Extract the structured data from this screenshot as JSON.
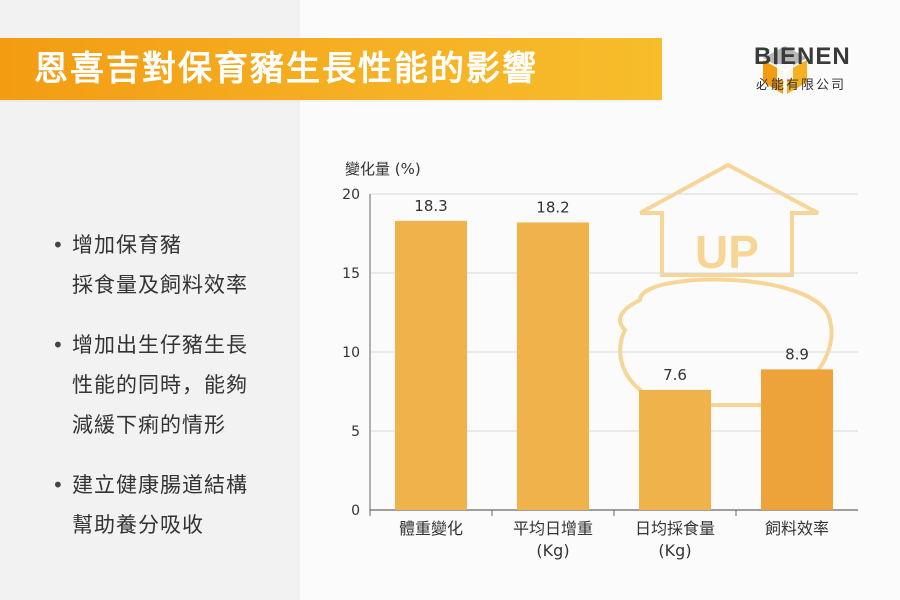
{
  "header": {
    "title": "恩喜吉對保育豬生長性能的影響"
  },
  "logo": {
    "name": "BIENEN",
    "subtitle": "必能有限公司",
    "icon": "cube-logo-icon"
  },
  "bullets": [
    {
      "text": "增加保育豬\n採食量及飼料效率"
    },
    {
      "text": "增加出生仔豬生長\n性能的同時，能夠\n減緩下痢的情形"
    },
    {
      "text": "建立健康腸道結構\n幫助養分吸收"
    }
  ],
  "colors": {
    "bar": "#f0b24b",
    "bar_last": "#eda33a",
    "title_bar": "#f5a81e",
    "up_icon": "#f7cf8a"
  },
  "chart_data": {
    "type": "bar",
    "title": "",
    "xlabel": "",
    "ylabel": "變化量 (%)",
    "ylim": [
      0,
      20
    ],
    "yticks": [
      0,
      5,
      10,
      15,
      20
    ],
    "categories": [
      "體重變化",
      "平均日增重\n(Kg)",
      "日均採食量\n(Kg)",
      "飼料效率"
    ],
    "values": [
      18.3,
      18.2,
      7.6,
      8.9
    ],
    "data_labels": [
      "18.3",
      "18.2",
      "7.6",
      "8.9"
    ],
    "grid": true,
    "decoration_text": "UP"
  }
}
